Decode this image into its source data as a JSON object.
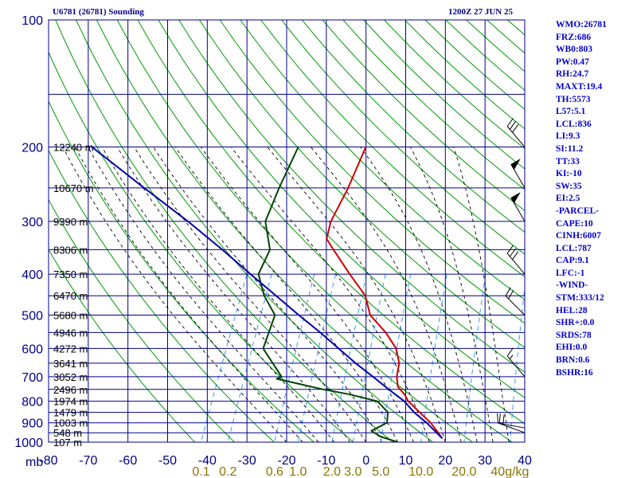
{
  "header": {
    "station": "U6781 (26781) Sounding",
    "time": "1200Z 27 JUN 25"
  },
  "indices": [
    "WMO:26781",
    "FRZ:686",
    "WB0:803",
    "PW:0.47",
    "RH:24.7",
    "MAXT:19.4",
    "TH:5573",
    "L57:5.1",
    "LCL:836",
    "LI:9.3",
    "SI:11.2",
    "TT:33",
    "KI:-10",
    "SW:35",
    "EI:2.5",
    "-PARCEL-",
    "CAPE:10",
    "CINH:6007",
    "LCL:787",
    "CAP:9.1",
    "LFC:-1",
    "-WIND-",
    "STM:333/12",
    "HEL:28",
    "SHR+:0.0",
    "SRDS:78",
    "EHI:0.0",
    "BRN:0.6",
    "BSHR:16"
  ],
  "colors": {
    "grid": "#00008b",
    "dry_adiabat": "#009900",
    "moist_adiabat": "#000000",
    "mixing_ratio": "#1e90ff",
    "temperature": "#cc0000",
    "dewpoint": "#004400",
    "parcel": "#0000aa",
    "mixing_label": "#8b7500"
  },
  "chart_data": {
    "type": "line",
    "title": "U6781 (26781) Sounding",
    "xlabel": "",
    "ylabel": "mb",
    "x_ticks": [
      -80,
      -70,
      -60,
      -50,
      -40,
      -30,
      -20,
      -10,
      0,
      10,
      20,
      30,
      40
    ],
    "x_tick_labels": [
      "-80",
      "-70",
      "-60",
      "-50",
      "-40",
      "-30",
      "-20",
      "-10",
      "0",
      "10",
      "20",
      "30",
      "40"
    ],
    "pressure_ticks": [
      100,
      200,
      300,
      400,
      500,
      600,
      700,
      800,
      900,
      1000
    ],
    "xlim": [
      -80,
      40
    ],
    "ylim": [
      1000,
      100
    ],
    "height_labels": [
      {
        "p": 200,
        "label": "12240 m"
      },
      {
        "p": 250,
        "label": "10670 m"
      },
      {
        "p": 300,
        "label": "9390 m"
      },
      {
        "p": 350,
        "label": "8306 m"
      },
      {
        "p": 400,
        "label": "7350 m"
      },
      {
        "p": 450,
        "label": "6470 m"
      },
      {
        "p": 500,
        "label": "5680 m"
      },
      {
        "p": 550,
        "label": "4946 m"
      },
      {
        "p": 600,
        "label": "4272 m"
      },
      {
        "p": 650,
        "label": "3641 m"
      },
      {
        "p": 700,
        "label": "3052 m"
      },
      {
        "p": 750,
        "label": "2496 m"
      },
      {
        "p": 800,
        "label": "1974 m"
      },
      {
        "p": 850,
        "label": "1479 m"
      },
      {
        "p": 900,
        "label": "1003 m"
      },
      {
        "p": 950,
        "label": "548 m"
      },
      {
        "p": 1000,
        "label": "107 m"
      }
    ],
    "mixing_ratio_labels": [
      {
        "w": 0.1,
        "label": "0.1"
      },
      {
        "w": 0.2,
        "label": "0.2"
      },
      {
        "w": 0.6,
        "label": "0.6"
      },
      {
        "w": 1.0,
        "label": "1.0"
      },
      {
        "w": 2.0,
        "label": "2.0"
      },
      {
        "w": 3.0,
        "label": "3.0"
      },
      {
        "w": 5.0,
        "label": "5.0"
      },
      {
        "w": 10.0,
        "label": "10.0"
      },
      {
        "w": 20.0,
        "label": "20.0"
      },
      {
        "w": 40.0,
        "label": "40g/kg"
      }
    ],
    "series": [
      {
        "key": "temperature",
        "points": [
          [
            200,
            -35
          ],
          [
            250,
            -34.6
          ],
          [
            300,
            -35
          ],
          [
            330,
            -34
          ],
          [
            350,
            -31
          ],
          [
            400,
            -24
          ],
          [
            450,
            -17.5
          ],
          [
            500,
            -14
          ],
          [
            550,
            -8
          ],
          [
            600,
            -3.5
          ],
          [
            650,
            -1
          ],
          [
            700,
            0
          ],
          [
            740,
            1.5
          ],
          [
            770,
            4
          ],
          [
            800,
            5.8
          ],
          [
            850,
            10
          ],
          [
            900,
            14
          ],
          [
            940,
            16.5
          ],
          [
            980,
            18.8
          ]
        ]
      },
      {
        "key": "dewpoint",
        "points": [
          [
            200,
            -52
          ],
          [
            250,
            -52
          ],
          [
            300,
            -51.5
          ],
          [
            350,
            -47
          ],
          [
            400,
            -47
          ],
          [
            450,
            -43
          ],
          [
            500,
            -38
          ],
          [
            600,
            -37
          ],
          [
            700,
            -29
          ],
          [
            708,
            -30
          ],
          [
            750,
            -17
          ],
          [
            770,
            -10
          ],
          [
            800,
            -2
          ],
          [
            850,
            2
          ],
          [
            900,
            3
          ],
          [
            940,
            0
          ],
          [
            970,
            3
          ],
          [
            1000,
            8
          ]
        ]
      },
      {
        "key": "parcel",
        "points": [
          [
            980,
            18.8
          ],
          [
            900,
            13
          ],
          [
            850,
            8.6
          ],
          [
            800,
            4.8
          ],
          [
            750,
            -0.5
          ],
          [
            700,
            -6
          ],
          [
            650,
            -12
          ],
          [
            600,
            -18
          ],
          [
            550,
            -24.5
          ],
          [
            500,
            -32
          ],
          [
            450,
            -40
          ],
          [
            400,
            -49
          ],
          [
            350,
            -59
          ],
          [
            300,
            -71
          ],
          [
            250,
            -86
          ],
          [
            200,
            -104
          ]
        ]
      }
    ],
    "winds": [
      {
        "p": 950,
        "dir": 290,
        "spd": 20
      },
      {
        "p": 925,
        "dir": 280,
        "spd": 10
      },
      {
        "p": 700,
        "dir": 320,
        "spd": 15
      },
      {
        "p": 500,
        "dir": 315,
        "spd": 20
      },
      {
        "p": 400,
        "dir": 320,
        "spd": 30
      },
      {
        "p": 300,
        "dir": 330,
        "spd": 50
      },
      {
        "p": 250,
        "dir": 330,
        "spd": 50
      },
      {
        "p": 200,
        "dir": 320,
        "spd": 30
      }
    ]
  }
}
